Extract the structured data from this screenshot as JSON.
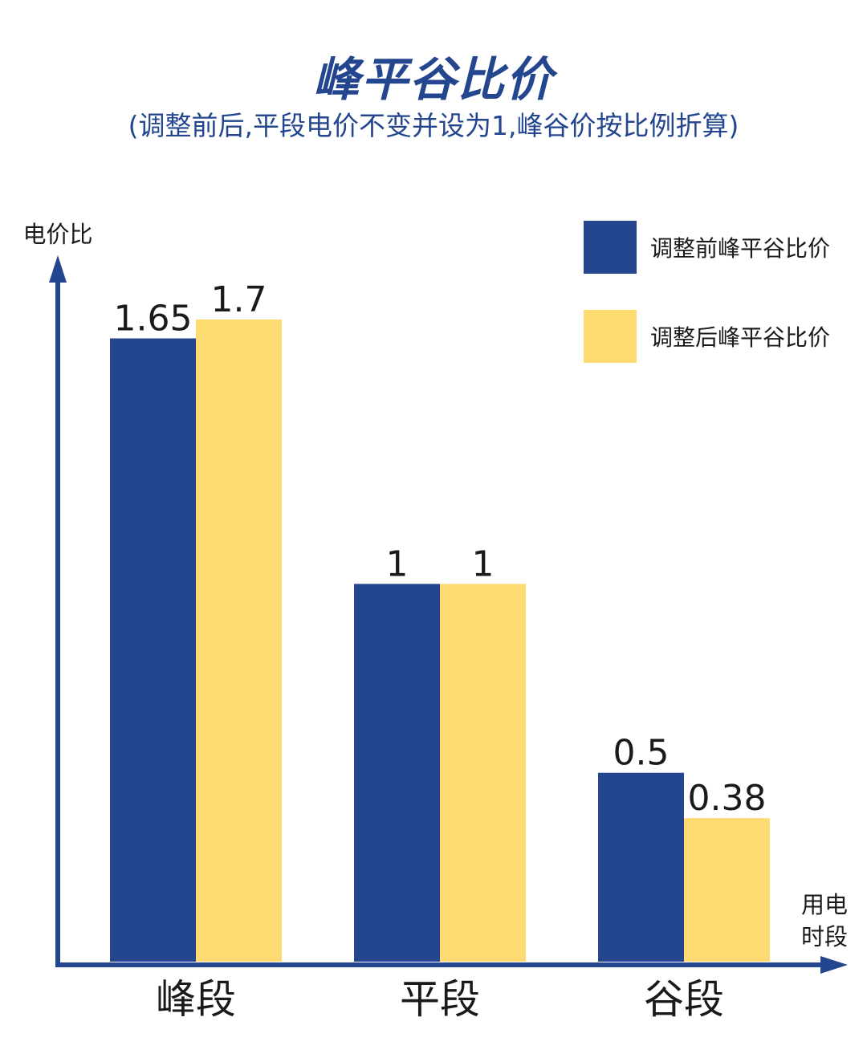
{
  "title": "峰平谷比价",
  "subtitle": "(调整前后,平段电价不变并设为1,峰谷价按比例折算)",
  "colors": {
    "axis": "#24468f",
    "series_before": "#24468f",
    "series_after": "#fedb71",
    "text": "#1a1a1a"
  },
  "chart_data": {
    "type": "bar",
    "categories": [
      "峰段",
      "平段",
      "谷段"
    ],
    "series": [
      {
        "name": "调整前峰平谷比价",
        "values": [
          1.65,
          1,
          0.5
        ],
        "labels": [
          "1.65",
          "1",
          "0.5"
        ]
      },
      {
        "name": "调整后峰平谷比价",
        "values": [
          1.7,
          1,
          0.38
        ],
        "labels": [
          "1.7",
          "1",
          "0.38"
        ]
      }
    ],
    "ylabel": "电价比",
    "xlabel_lines": [
      "用电",
      "时段"
    ],
    "ylim": [
      0,
      1.7
    ],
    "grid": false,
    "legend": "top-right"
  }
}
